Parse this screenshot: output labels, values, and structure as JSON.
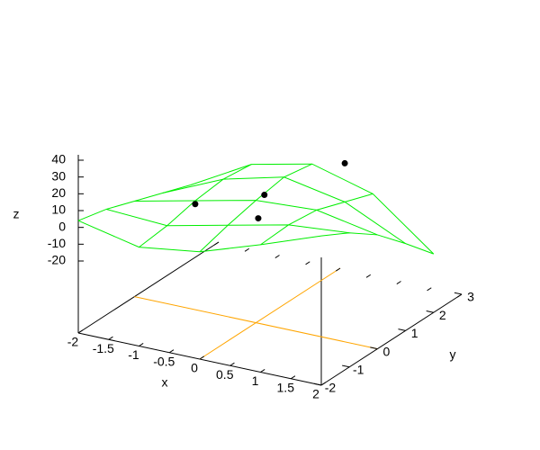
{
  "chart_data": {
    "type": "surface3d",
    "x_label": "x",
    "y_label": "y",
    "z_label": "z",
    "xlim": [
      -2,
      2
    ],
    "xticks": [
      -2,
      -1.5,
      -1,
      -0.5,
      0,
      0.5,
      1,
      1.5,
      2
    ],
    "ylim": [
      -2,
      3
    ],
    "yticks": [
      -2,
      -1,
      0,
      1,
      2,
      3
    ],
    "zlim": [
      -20,
      40
    ],
    "zticks": [
      -20,
      -10,
      0,
      10,
      20,
      30,
      40
    ],
    "surface": {
      "color": "#00ee00",
      "x": [
        -2,
        -1,
        0,
        1,
        2
      ],
      "y": [
        -2,
        -1,
        0,
        1,
        2
      ],
      "z": [
        [
          4,
          -4,
          1,
          13,
          26
        ],
        [
          0,
          -2,
          6,
          14,
          17
        ],
        [
          -6,
          2,
          10,
          12,
          5
        ],
        [
          -12,
          4,
          13,
          6,
          -11
        ],
        [
          -18,
          2,
          10,
          0,
          -28
        ]
      ]
    },
    "points": {
      "color": "#000000",
      "x": [
        -1,
        0,
        0.5,
        1
      ],
      "y": [
        0,
        0.3,
        -1,
        1
      ],
      "z": [
        0,
        10,
        14,
        29
      ]
    },
    "zero_axes": {
      "color": "#ffa500"
    }
  }
}
